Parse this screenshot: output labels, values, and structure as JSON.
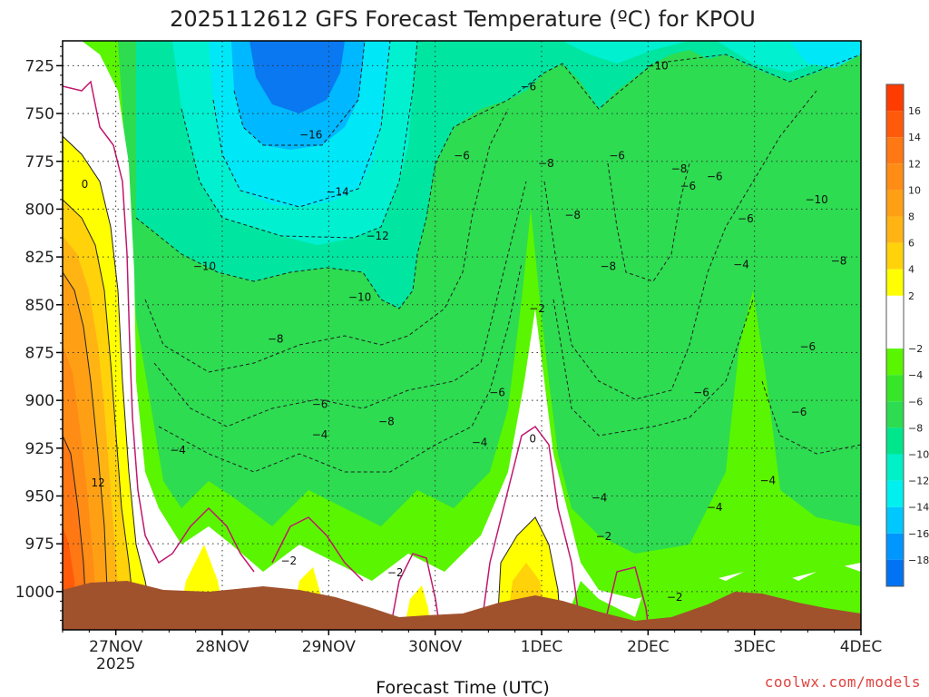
{
  "chart_data": {
    "type": "heatmap",
    "title": "2025112612 GFS Forecast Temperature (ºC) for KPOU",
    "xlabel": "Forecast Time (UTC)",
    "credit": "coolwx.com/models",
    "y_axis": {
      "quantity": "pressure (hPa)",
      "range": [
        1020,
        712
      ],
      "inverted": true,
      "ticks": [
        "725",
        "750",
        "775",
        "800",
        "825",
        "850",
        "875",
        "900",
        "925",
        "950",
        "975",
        "1000"
      ],
      "grid": true
    },
    "x_axis": {
      "range": [
        "2025-11-26 12Z",
        "2025-12-04 00Z"
      ],
      "ticks": [
        {
          "label": "27NOV",
          "sublabel": "2025",
          "date": "2025-11-27"
        },
        {
          "label": "28NOV",
          "sublabel": "",
          "date": "2025-11-28"
        },
        {
          "label": "29NOV",
          "sublabel": "",
          "date": "2025-11-29"
        },
        {
          "label": "30NOV",
          "sublabel": "",
          "date": "2025-11-30"
        },
        {
          "label": "1DEC",
          "sublabel": "",
          "date": "2025-12-01"
        },
        {
          "label": "2DEC",
          "sublabel": "",
          "date": "2025-12-02"
        },
        {
          "label": "3DEC",
          "sublabel": "",
          "date": "2025-12-03"
        },
        {
          "label": "4DEC",
          "sublabel": "",
          "date": "2025-12-04"
        }
      ],
      "grid": true
    },
    "colorbar": {
      "placement": "right",
      "labels": [
        "16",
        "14",
        "12",
        "10",
        "8",
        "6",
        "4",
        "2",
        "-2",
        "-4",
        "-6",
        "-8",
        "-10",
        "-12",
        "-14",
        "-16",
        "-18"
      ],
      "bins": [
        {
          "lo": 16,
          "hi": 18,
          "color": "#ff3c00"
        },
        {
          "lo": 14,
          "hi": 16,
          "color": "#ff5a0a"
        },
        {
          "lo": 12,
          "hi": 14,
          "color": "#ff7814"
        },
        {
          "lo": 10,
          "hi": 12,
          "color": "#ff8c14"
        },
        {
          "lo": 8,
          "hi": 10,
          "color": "#ffa014"
        },
        {
          "lo": 6,
          "hi": 8,
          "color": "#ffb414"
        },
        {
          "lo": 4,
          "hi": 6,
          "color": "#ffd20a"
        },
        {
          "lo": 2,
          "hi": 4,
          "color": "#ffff00"
        },
        {
          "lo": -2,
          "hi": 2,
          "color": "#ffffff"
        },
        {
          "lo": -4,
          "hi": -2,
          "color": "#5af500"
        },
        {
          "lo": -6,
          "hi": -4,
          "color": "#37e628"
        },
        {
          "lo": -8,
          "hi": -6,
          "color": "#2ddc50"
        },
        {
          "lo": -10,
          "hi": -8,
          "color": "#00e68c"
        },
        {
          "lo": -12,
          "hi": -10,
          "color": "#00f0c8"
        },
        {
          "lo": -14,
          "hi": -12,
          "color": "#00f0f0"
        },
        {
          "lo": -16,
          "hi": -14,
          "color": "#00c8ff"
        },
        {
          "lo": -18,
          "hi": -16,
          "color": "#0096ff"
        },
        {
          "lo": -20,
          "hi": -18,
          "color": "#0073f5"
        }
      ]
    },
    "contour_labels": [
      {
        "text": "0",
        "t": "2025-11-26 T17",
        "p": 787
      },
      {
        "text": "12",
        "t": "2025-11-26 T20",
        "p": 943
      },
      {
        "text": "-10",
        "t": "2025-11-27 T20",
        "p": 830
      },
      {
        "text": "-4",
        "t": "2025-11-27 T14",
        "p": 926
      },
      {
        "text": "-16",
        "t": "2025-11-28 T20",
        "p": 761
      },
      {
        "text": "-14",
        "t": "2025-11-29 T02",
        "p": 791
      },
      {
        "text": "-12",
        "t": "2025-11-29 T11",
        "p": 814
      },
      {
        "text": "-10",
        "t": "2025-11-29 T07",
        "p": 846
      },
      {
        "text": "-8",
        "t": "2025-11-28 T12",
        "p": 868
      },
      {
        "text": "-6",
        "t": "2025-11-28 T22",
        "p": 902
      },
      {
        "text": "-4",
        "t": "2025-11-28 T22",
        "p": 918
      },
      {
        "text": "-8",
        "t": "2025-11-29 T13",
        "p": 911
      },
      {
        "text": "-2",
        "t": "2025-11-28 T15",
        "p": 984
      },
      {
        "text": "-2",
        "t": "2025-11-29 T15",
        "p": 990
      },
      {
        "text": "-6",
        "t": "2025-11-30 T06",
        "p": 772
      },
      {
        "text": "-4",
        "t": "2025-11-30 T10",
        "p": 922
      },
      {
        "text": "-6",
        "t": "2025-11-30 T14",
        "p": 896
      },
      {
        "text": "-6",
        "t": "2025-11-30 T21",
        "p": 736
      },
      {
        "text": "-2",
        "t": "2025-11-30 T23",
        "p": 852
      },
      {
        "text": "-8",
        "t": "2025-12-01 T01",
        "p": 776
      },
      {
        "text": "-8",
        "t": "2025-12-01 T07",
        "p": 803
      },
      {
        "text": "0",
        "t": "2025-11-30 T22",
        "p": 920
      },
      {
        "text": "-8",
        "t": "2025-12-01 T15",
        "p": 830
      },
      {
        "text": "-6",
        "t": "2025-12-01 T17",
        "p": 772
      },
      {
        "text": "-4",
        "t": "2025-12-01 T13",
        "p": 951
      },
      {
        "text": "-2",
        "t": "2025-12-01 T14",
        "p": 971
      },
      {
        "text": "-10",
        "t": "2025-12-02 T02",
        "p": 725
      },
      {
        "text": "-8",
        "t": "2025-12-02 T07",
        "p": 779
      },
      {
        "text": "-6",
        "t": "2025-12-02 T09",
        "p": 788
      },
      {
        "text": "-6",
        "t": "2025-12-02 T15",
        "p": 783
      },
      {
        "text": "-6",
        "t": "2025-12-02 T22",
        "p": 805
      },
      {
        "text": "-4",
        "t": "2025-12-02 T21",
        "p": 829
      },
      {
        "text": "-6",
        "t": "2025-12-02 T12",
        "p": 896
      },
      {
        "text": "-4",
        "t": "2025-12-02 T15",
        "p": 956
      },
      {
        "text": "-2",
        "t": "2025-12-02 T06",
        "p": 1003
      },
      {
        "text": "-10",
        "t": "2025-12-03 T14",
        "p": 795
      },
      {
        "text": "-8",
        "t": "2025-12-03 T19",
        "p": 827
      },
      {
        "text": "-4",
        "t": "2025-12-03 T03",
        "p": 942
      },
      {
        "text": "-6",
        "t": "2025-12-03 T10",
        "p": 906
      },
      {
        "text": "-6",
        "t": "2025-12-03 T12",
        "p": 872
      }
    ]
  }
}
